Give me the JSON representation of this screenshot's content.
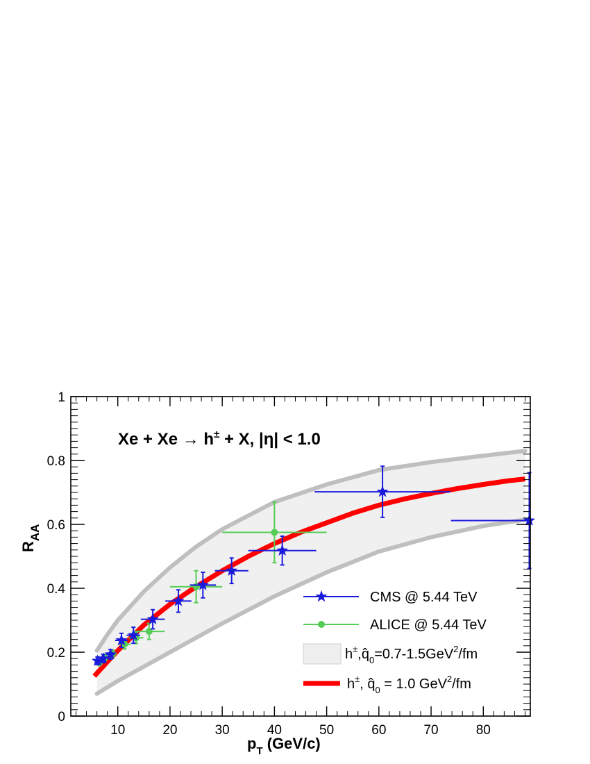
{
  "chart_data": {
    "type": "scatter",
    "annotation": {
      "main": "Xe + Xe → h",
      "sup": "±",
      "rest": " + X,  |η| < 1.0"
    },
    "xlabel": {
      "main": "p",
      "sub": "T",
      "rest": " (GeV/c)"
    },
    "ylabel": {
      "main": "R",
      "sub": "AA"
    },
    "xlim": [
      1,
      89
    ],
    "ylim": [
      0,
      1
    ],
    "x_ticks": [
      10,
      20,
      30,
      40,
      50,
      60,
      70,
      80
    ],
    "x_tick_labels": [
      "10",
      "20",
      "30",
      "40",
      "50",
      "60",
      "70",
      "80"
    ],
    "y_ticks": [
      0,
      0.2,
      0.4,
      0.6,
      0.8,
      1
    ],
    "y_tick_labels": [
      "0",
      "0.2",
      "0.4",
      "0.6",
      "0.8",
      "1"
    ],
    "legend_position": "bottom-right",
    "series": [
      {
        "name": "CMS  @ 5.44 TeV",
        "kind": "points",
        "marker": "star",
        "color": "#1a1adc",
        "points": [
          {
            "x": 6.1,
            "y": 0.173,
            "xerr": 0.5,
            "yerr": 0.012
          },
          {
            "x": 7.2,
            "y": 0.18,
            "xerr": 0.6,
            "yerr": 0.013
          },
          {
            "x": 8.6,
            "y": 0.193,
            "xerr": 0.8,
            "yerr": 0.015
          },
          {
            "x": 10.7,
            "y": 0.237,
            "xerr": 1.2,
            "yerr": 0.022
          },
          {
            "x": 13.0,
            "y": 0.253,
            "xerr": 1.3,
            "yerr": 0.025
          },
          {
            "x": 16.7,
            "y": 0.303,
            "xerr": 2.3,
            "yerr": 0.03
          },
          {
            "x": 21.6,
            "y": 0.36,
            "xerr": 2.5,
            "yerr": 0.035
          },
          {
            "x": 26.3,
            "y": 0.41,
            "xerr": 2.5,
            "yerr": 0.04
          },
          {
            "x": 31.8,
            "y": 0.455,
            "xerr": 3.2,
            "yerr": 0.04
          },
          {
            "x": 41.5,
            "y": 0.518,
            "xerr": 6.5,
            "yerr": 0.045
          },
          {
            "x": 60.7,
            "y": 0.702,
            "xerr": 13.0,
            "yerr": 0.08
          },
          {
            "x": 88.8,
            "y": 0.612,
            "xerr": 15.0,
            "yerr": 0.15
          }
        ]
      },
      {
        "name": "ALICE  @ 5.44 TeV",
        "kind": "points",
        "marker": "circle",
        "color": "#55cc55",
        "points": [
          {
            "x": 6.5,
            "y": 0.168,
            "xerr": 0.5,
            "yerr": 0.01
          },
          {
            "x": 7.5,
            "y": 0.183,
            "xerr": 0.5,
            "yerr": 0.01
          },
          {
            "x": 9.0,
            "y": 0.195,
            "xerr": 0.8,
            "yerr": 0.012
          },
          {
            "x": 11.3,
            "y": 0.225,
            "xerr": 1.2,
            "yerr": 0.015
          },
          {
            "x": 13.5,
            "y": 0.245,
            "xerr": 1.4,
            "yerr": 0.018
          },
          {
            "x": 16.0,
            "y": 0.265,
            "xerr": 3.0,
            "yerr": 0.025
          },
          {
            "x": 25.0,
            "y": 0.405,
            "xerr": 5.0,
            "yerr": 0.05
          },
          {
            "x": 40.0,
            "y": 0.575,
            "xerr": 10.0,
            "yerr": 0.095
          }
        ]
      },
      {
        "name_main": "h",
        "name_sup": "±",
        "name_rest": ",q̂",
        "name_sub": "0",
        "name_tail": "=0.7-1.5GeV",
        "name_sup2": "2",
        "name_end": "/fm",
        "kind": "band",
        "color": "#bfbfbf",
        "x": [
          6,
          8,
          10,
          15,
          20,
          25,
          30,
          40,
          50,
          60,
          70,
          80,
          88
        ],
        "y_upper": [
          0.205,
          0.255,
          0.3,
          0.39,
          0.465,
          0.53,
          0.585,
          0.67,
          0.725,
          0.77,
          0.795,
          0.815,
          0.83
        ],
        "y_lower": [
          0.07,
          0.09,
          0.11,
          0.155,
          0.2,
          0.245,
          0.29,
          0.375,
          0.45,
          0.515,
          0.56,
          0.595,
          0.615
        ]
      },
      {
        "name_main": "h",
        "name_sup": "±",
        "name_rest": ",  q̂",
        "name_sub": "0",
        "name_tail": " = 1.0 GeV",
        "name_sup2": "2",
        "name_end": "/fm",
        "kind": "curve",
        "color": "#ff0000",
        "x": [
          5.5,
          8,
          10,
          15,
          20,
          25,
          30,
          35,
          40,
          45,
          50,
          55,
          60,
          65,
          70,
          75,
          80,
          85,
          88
        ],
        "y": [
          0.125,
          0.17,
          0.205,
          0.285,
          0.35,
          0.405,
          0.455,
          0.5,
          0.54,
          0.575,
          0.605,
          0.635,
          0.66,
          0.68,
          0.697,
          0.712,
          0.725,
          0.737,
          0.742
        ]
      }
    ]
  }
}
